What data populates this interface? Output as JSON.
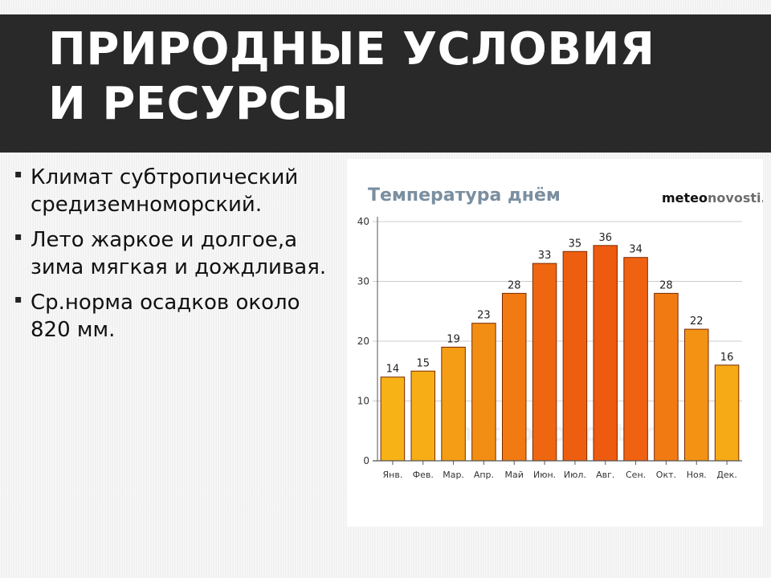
{
  "slide": {
    "title": "ПРИРОДНЫЕ УСЛОВИЯ\nИ РЕСУРСЫ",
    "bullets": [
      "Климат субтропический средиземноморский.",
      "Лето жаркое и долгое,а зима мягкая и дождливая.",
      "Ср.норма осадков около 820 мм."
    ]
  },
  "colors": {
    "title_bar": "#292929",
    "bar_warm": "#f7b216",
    "bar_hot": "#ee5a10",
    "bar_stroke": "#7a2a00",
    "chart_title": "#7a8fa0",
    "brand_dark": "#111111",
    "brand_gray": "#6d6d6d"
  },
  "chart_data": {
    "type": "bar",
    "title": "Температура днём",
    "brand": {
      "bold": "meteo",
      "regular": "novosti.ru"
    },
    "watermark": "meteonovosti.ru",
    "categories": [
      "Янв.",
      "Фев.",
      "Мар.",
      "Апр.",
      "Май",
      "Июн.",
      "Июл.",
      "Авг.",
      "Сен.",
      "Окт.",
      "Ноя.",
      "Дек."
    ],
    "values": [
      14,
      15,
      19,
      23,
      28,
      33,
      35,
      36,
      34,
      28,
      22,
      16
    ],
    "ylim": [
      0,
      40
    ],
    "yticks": [
      0,
      10,
      20,
      30,
      40
    ],
    "xlabel": "",
    "ylabel": "",
    "grid": true,
    "legend": "none"
  }
}
